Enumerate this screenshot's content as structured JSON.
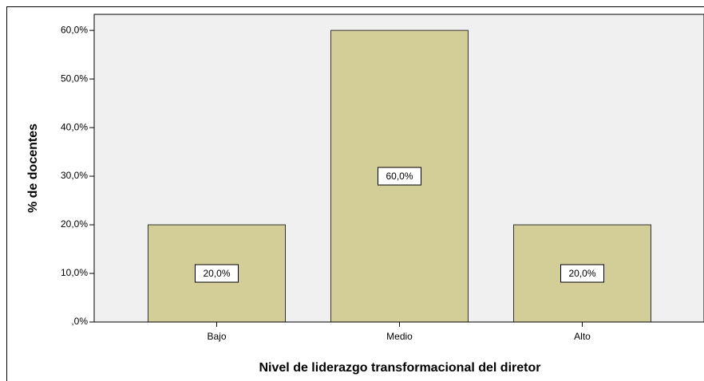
{
  "chart_data": {
    "type": "bar",
    "x_label": "Nivel de liderazgo transformacional del diretor",
    "y_label": "% de docentes",
    "categories": [
      "Bajo",
      "Medio",
      "Alto"
    ],
    "values": [
      20,
      60,
      20
    ],
    "value_labels": [
      "20,0%",
      "60,0%",
      "20,0%"
    ],
    "color": "#d3ce97",
    "ylim": [
      0,
      63.3
    ],
    "yticks": [
      {
        "value": 0,
        "label": ",0%"
      },
      {
        "value": 10,
        "label": "10,0%"
      },
      {
        "value": 20,
        "label": "20,0%"
      },
      {
        "value": 30,
        "label": "30,0%"
      },
      {
        "value": 40,
        "label": "40,0%"
      },
      {
        "value": 50,
        "label": "50,0%"
      },
      {
        "value": 60,
        "label": "60,0%"
      }
    ]
  }
}
